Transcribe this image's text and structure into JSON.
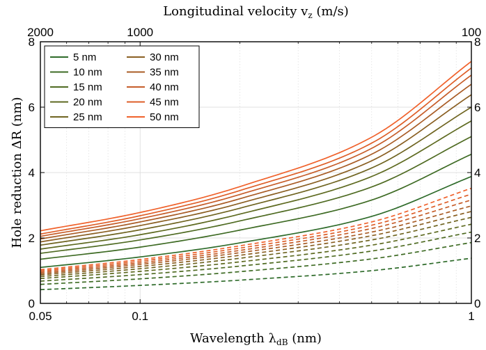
{
  "chart_data": {
    "type": "line",
    "xlabel": "Wavelength λ",
    "xlabel_sub": "dB",
    "xlabel_unit": " (nm)",
    "ylabel": "Hole reduction ΔR (nm)",
    "top_xlabel": "Longitudinal velocity v",
    "top_xlabel_sub": "z",
    "top_xlabel_unit": " (m/s)",
    "xscale": "log",
    "xlim": [
      0.05,
      1
    ],
    "ylim": [
      0,
      8
    ],
    "x_ticks": [
      {
        "value": 0.05,
        "label": "0.05"
      },
      {
        "value": 0.1,
        "label": "0.1"
      },
      {
        "value": 1,
        "label": "1"
      }
    ],
    "y_ticks": [
      {
        "value": 0,
        "label": "0"
      },
      {
        "value": 2,
        "label": "2"
      },
      {
        "value": 4,
        "label": "4"
      },
      {
        "value": 6,
        "label": "6"
      },
      {
        "value": 8,
        "label": "8"
      }
    ],
    "top_ticks": [
      {
        "value": 0.05,
        "label": "2000"
      },
      {
        "value": 0.1,
        "label": "1000"
      },
      {
        "value": 1,
        "label": "100"
      }
    ],
    "grid": true,
    "legend_position": "top-left",
    "x": [
      0.05,
      0.1,
      0.2,
      0.5,
      1.0
    ],
    "series": [
      {
        "name": "5 nm",
        "color": "#2e6b2a",
        "style": "solid",
        "values": [
          1.1,
          1.42,
          1.85,
          2.66,
          3.88
        ]
      },
      {
        "name": "10 nm",
        "color": "#3e6b24",
        "style": "solid",
        "values": [
          1.35,
          1.72,
          2.24,
          3.16,
          4.56
        ]
      },
      {
        "name": "15 nm",
        "color": "#4f6b22",
        "style": "solid",
        "values": [
          1.53,
          1.94,
          2.52,
          3.56,
          5.1
        ]
      },
      {
        "name": "20 nm",
        "color": "#5e6a20",
        "style": "solid",
        "values": [
          1.66,
          2.1,
          2.73,
          3.88,
          5.58
        ]
      },
      {
        "name": "25 nm",
        "color": "#6f6420",
        "style": "solid",
        "values": [
          1.78,
          2.25,
          2.91,
          4.14,
          6.0
        ]
      },
      {
        "name": "30 nm",
        "color": "#8a5f22",
        "style": "solid",
        "values": [
          1.88,
          2.38,
          3.06,
          4.36,
          6.38
        ]
      },
      {
        "name": "35 nm",
        "color": "#a95c26",
        "style": "solid",
        "values": [
          1.97,
          2.49,
          3.2,
          4.56,
          6.7
        ]
      },
      {
        "name": "40 nm",
        "color": "#c65d2a",
        "style": "solid",
        "values": [
          2.05,
          2.59,
          3.33,
          4.74,
          6.98
        ]
      },
      {
        "name": "45 nm",
        "color": "#de5e28",
        "style": "solid",
        "values": [
          2.12,
          2.68,
          3.45,
          4.9,
          7.2
        ]
      },
      {
        "name": "50 nm",
        "color": "#f0622c",
        "style": "solid",
        "values": [
          2.22,
          2.78,
          3.57,
          5.08,
          7.4
        ]
      },
      {
        "color": "#2e6b2a",
        "style": "dashed",
        "values": [
          0.42,
          0.55,
          0.71,
          1.0,
          1.38
        ]
      },
      {
        "color": "#3e6b24",
        "style": "dashed",
        "values": [
          0.58,
          0.75,
          0.97,
          1.36,
          1.86
        ]
      },
      {
        "color": "#4f6b22",
        "style": "dashed",
        "values": [
          0.68,
          0.88,
          1.14,
          1.6,
          2.18
        ]
      },
      {
        "color": "#5e6a20",
        "style": "dashed",
        "values": [
          0.76,
          0.98,
          1.27,
          1.78,
          2.42
        ]
      },
      {
        "color": "#6f6420",
        "style": "dashed",
        "values": [
          0.82,
          1.06,
          1.38,
          1.94,
          2.63
        ]
      },
      {
        "color": "#8a5f22",
        "style": "dashed",
        "values": [
          0.87,
          1.13,
          1.47,
          2.07,
          2.81
        ]
      },
      {
        "color": "#a95c26",
        "style": "dashed",
        "values": [
          0.91,
          1.19,
          1.55,
          2.18,
          2.98
        ]
      },
      {
        "color": "#c65d2a",
        "style": "dashed",
        "values": [
          0.95,
          1.24,
          1.62,
          2.29,
          3.16
        ]
      },
      {
        "color": "#de5e28",
        "style": "dashed",
        "values": [
          0.99,
          1.29,
          1.69,
          2.39,
          3.34
        ]
      },
      {
        "color": "#f0622c",
        "style": "dashed",
        "values": [
          1.03,
          1.34,
          1.76,
          2.49,
          3.52
        ]
      }
    ]
  }
}
